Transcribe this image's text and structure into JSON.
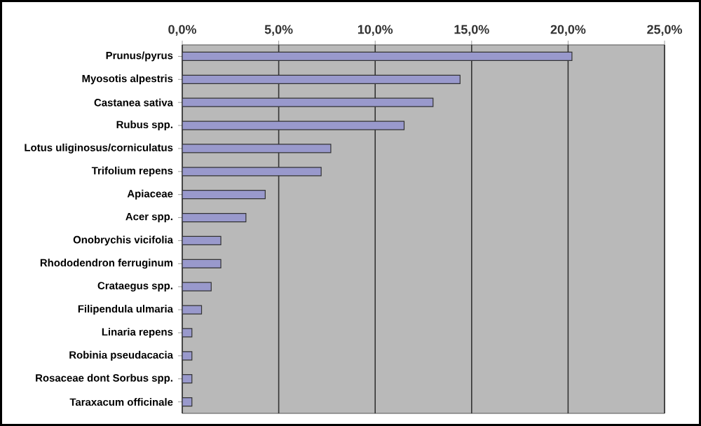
{
  "chart_data": {
    "type": "bar",
    "orientation": "horizontal",
    "categories": [
      "Prunus/pyrus",
      "Myosotis alpestris",
      "Castanea sativa",
      "Rubus spp.",
      "Lotus uliginosus/corniculatus",
      "Trifolium repens",
      "Apiaceae",
      "Acer spp.",
      "Onobrychis vicifolia",
      "Rhododendron ferruginum",
      "Crataegus spp.",
      "Filipendula ulmaria",
      "Linaria repens",
      "Robinia pseudacacia",
      "Rosaceae dont Sorbus spp.",
      "Taraxacum officinale"
    ],
    "values": [
      20.2,
      14.4,
      13.0,
      11.5,
      7.7,
      7.2,
      4.3,
      3.3,
      2.0,
      2.0,
      1.5,
      1.0,
      0.5,
      0.5,
      0.5,
      0.5
    ],
    "color": "#9999cc",
    "xlim": [
      0,
      25
    ],
    "xticks": [
      {
        "value": 0,
        "label": "0,0%"
      },
      {
        "value": 5,
        "label": "5,0%"
      },
      {
        "value": 10,
        "label": "10,0%"
      },
      {
        "value": 15,
        "label": "15,0%"
      },
      {
        "value": 20,
        "label": "20,0%"
      },
      {
        "value": 25,
        "label": "25,0%"
      }
    ],
    "grid": "x"
  }
}
